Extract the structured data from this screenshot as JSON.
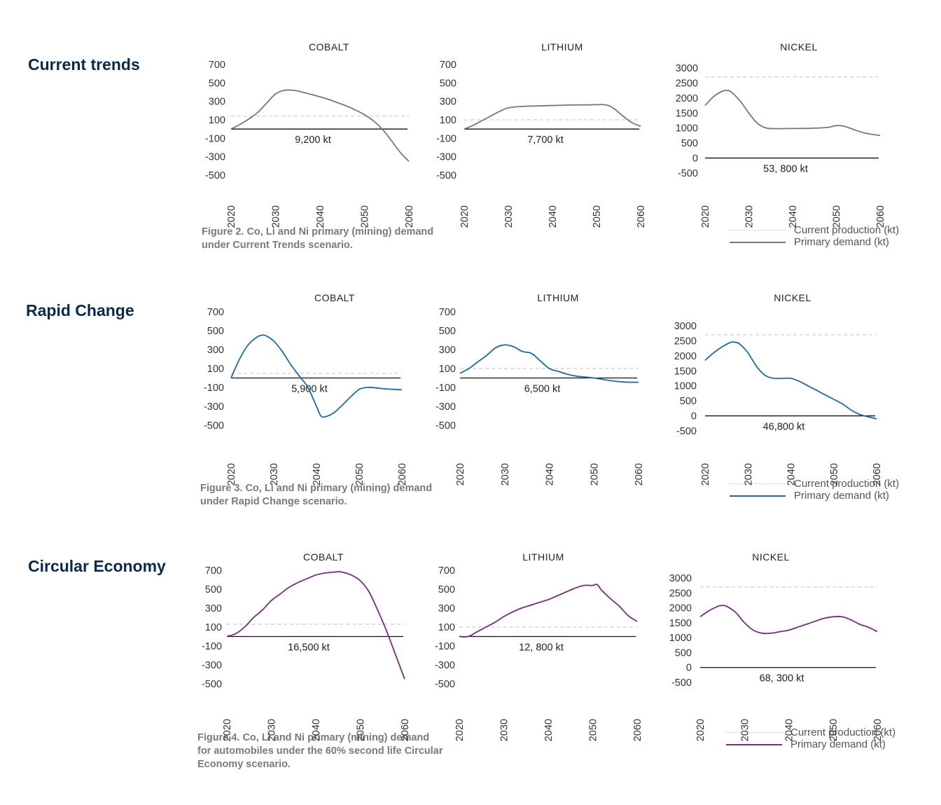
{
  "rows": [
    {
      "title": "Current trends",
      "caption": [
        "Figure 2. Co, Li and Ni primary (mining) demand",
        "under Current Trends scenario."
      ],
      "line_color": "#777777",
      "legend": {
        "current": "Current production (kt)",
        "primary": "Primary demand (kt)"
      }
    },
    {
      "title": "Rapid Change",
      "caption": [
        "Figure 3. Co, Li and Ni primary (mining) demand",
        "under Rapid Change scenario."
      ],
      "line_color": "#1a6aa8",
      "legend": {
        "current": "Current production (kt)",
        "primary": "Primary demand (kt)"
      }
    },
    {
      "title": "Circular Economy",
      "caption": [
        "Figure 4. Co, Li and Ni primary (mining) demand",
        "for automobiles under the 60% second life Circular",
        "Economy scenario."
      ],
      "line_color": "#7b2a80",
      "legend": {
        "current": "Current production (kt)",
        "primary": "Primary demand (kt)"
      }
    }
  ],
  "chart_data": [
    {
      "type": "line",
      "row": 0,
      "title": "COBALT",
      "yticks": [
        "700",
        "500",
        "300",
        "100",
        "-100",
        "-300",
        "-500"
      ],
      "ytick_values": [
        700,
        500,
        300,
        100,
        -100,
        -300,
        -500
      ],
      "ylim": [
        -500,
        700
      ],
      "xticks": [
        "2020",
        "2030",
        "2040",
        "2050",
        "2060"
      ],
      "xlim": [
        2020,
        2060
      ],
      "current_production": 140,
      "total_label": "9,200 kt",
      "series": [
        {
          "name": "Primary demand (kt)",
          "x": [
            2020,
            2022,
            2024,
            2026,
            2028,
            2030,
            2032,
            2034,
            2036,
            2038,
            2040,
            2042,
            2044,
            2046,
            2048,
            2050,
            2052,
            2054,
            2056,
            2058,
            2060
          ],
          "y": [
            0,
            50,
            110,
            180,
            280,
            380,
            420,
            420,
            400,
            375,
            350,
            320,
            285,
            250,
            205,
            155,
            90,
            0,
            -120,
            -250,
            -350
          ]
        }
      ]
    },
    {
      "type": "line",
      "row": 0,
      "title": "LITHIUM",
      "yticks": [
        "700",
        "500",
        "300",
        "100",
        "-100",
        "-300",
        "-500"
      ],
      "ytick_values": [
        700,
        500,
        300,
        100,
        -100,
        -300,
        -500
      ],
      "ylim": [
        -500,
        700
      ],
      "xticks": [
        "2020",
        "2030",
        "2040",
        "2050",
        "2060"
      ],
      "xlim": [
        2020,
        2060
      ],
      "current_production": 100,
      "total_label": "7,700 kt",
      "series": [
        {
          "name": "Primary demand (kt)",
          "x": [
            2020,
            2022,
            2024,
            2026,
            2028,
            2030,
            2033,
            2036,
            2040,
            2044,
            2048,
            2052,
            2054,
            2056,
            2058,
            2060
          ],
          "y": [
            0,
            40,
            90,
            140,
            190,
            230,
            245,
            250,
            255,
            260,
            262,
            262,
            220,
            140,
            70,
            30
          ]
        }
      ]
    },
    {
      "type": "line",
      "row": 0,
      "title": "NICKEL",
      "yticks": [
        "3000",
        "2500",
        "2000",
        "1500",
        "1000",
        "500",
        "0",
        "-500"
      ],
      "ytick_values": [
        3000,
        2500,
        2000,
        1500,
        1000,
        500,
        0,
        -500
      ],
      "ylim": [
        -500,
        3000
      ],
      "xticks": [
        "2020",
        "2030",
        "2040",
        "2050",
        "2060"
      ],
      "xlim": [
        2020,
        2060
      ],
      "current_production": 2700,
      "total_label": "53, 800 kt",
      "series": [
        {
          "name": "Primary demand (kt)",
          "x": [
            2020,
            2022,
            2024,
            2025,
            2026,
            2028,
            2030,
            2032,
            2034,
            2036,
            2040,
            2044,
            2048,
            2050,
            2052,
            2056,
            2060
          ],
          "y": [
            1750,
            2050,
            2230,
            2250,
            2200,
            1900,
            1500,
            1150,
            1000,
            980,
            985,
            990,
            1020,
            1080,
            1050,
            850,
            750
          ]
        }
      ]
    },
    {
      "type": "line",
      "row": 1,
      "title": "COBALT",
      "yticks": [
        "700",
        "500",
        "300",
        "100",
        "-100",
        "-300",
        "-500"
      ],
      "ytick_values": [
        700,
        500,
        300,
        100,
        -100,
        -300,
        -500
      ],
      "ylim": [
        -500,
        700
      ],
      "xticks": [
        "2020",
        "2030",
        "2040",
        "2050",
        "2060"
      ],
      "xlim": [
        2020,
        2060
      ],
      "current_production": 50,
      "total_label": "5,900 kt",
      "series": [
        {
          "name": "Primary demand (kt)",
          "x": [
            2020,
            2022,
            2024,
            2026,
            2027,
            2028,
            2030,
            2032,
            2034,
            2036,
            2038,
            2040,
            2041,
            2042,
            2044,
            2046,
            2048,
            2050,
            2052,
            2054,
            2056,
            2058,
            2060
          ],
          "y": [
            0,
            200,
            350,
            430,
            450,
            450,
            390,
            280,
            140,
            20,
            -100,
            -300,
            -400,
            -410,
            -370,
            -290,
            -200,
            -120,
            -100,
            -105,
            -115,
            -120,
            -125
          ]
        }
      ]
    },
    {
      "type": "line",
      "row": 1,
      "title": "LITHIUM",
      "yticks": [
        "700",
        "500",
        "300",
        "100",
        "-100",
        "-300",
        "-500"
      ],
      "ytick_values": [
        700,
        500,
        300,
        100,
        -100,
        -300,
        -500
      ],
      "ylim": [
        -500,
        700
      ],
      "xticks": [
        "2020",
        "2030",
        "2040",
        "2050",
        "2060"
      ],
      "xlim": [
        2020,
        2060
      ],
      "current_production": 100,
      "total_label": "6,500 kt",
      "series": [
        {
          "name": "Primary demand (kt)",
          "x": [
            2020,
            2022,
            2024,
            2026,
            2028,
            2030,
            2032,
            2034,
            2036,
            2038,
            2040,
            2042,
            2044,
            2046,
            2048,
            2050,
            2052,
            2054,
            2056,
            2058,
            2060
          ],
          "y": [
            50,
            100,
            170,
            240,
            320,
            350,
            330,
            280,
            260,
            180,
            100,
            70,
            40,
            20,
            10,
            0,
            -15,
            -30,
            -40,
            -45,
            -45
          ]
        }
      ]
    },
    {
      "type": "line",
      "row": 1,
      "title": "NICKEL",
      "yticks": [
        "3000",
        "2500",
        "2000",
        "1500",
        "1000",
        "500",
        "0",
        "-500"
      ],
      "ytick_values": [
        3000,
        2500,
        2000,
        1500,
        1000,
        500,
        0,
        -500
      ],
      "ylim": [
        -500,
        3000
      ],
      "xticks": [
        "2020",
        "2030",
        "2040",
        "2050",
        "2060"
      ],
      "xlim": [
        2020,
        2060
      ],
      "current_production": 2700,
      "total_label": "46,800 kt",
      "series": [
        {
          "name": "Primary demand (kt)",
          "x": [
            2020,
            2022,
            2024,
            2026,
            2027,
            2028,
            2030,
            2032,
            2034,
            2036,
            2038,
            2040,
            2042,
            2044,
            2046,
            2048,
            2050,
            2052,
            2054,
            2056,
            2058,
            2060
          ],
          "y": [
            1850,
            2100,
            2300,
            2450,
            2450,
            2400,
            2100,
            1650,
            1350,
            1250,
            1250,
            1250,
            1150,
            1000,
            850,
            700,
            550,
            400,
            200,
            50,
            -30,
            -100
          ]
        }
      ]
    },
    {
      "type": "line",
      "row": 2,
      "title": "COBALT",
      "yticks": [
        "700",
        "500",
        "300",
        "100",
        "-100",
        "-300",
        "-500"
      ],
      "ytick_values": [
        700,
        500,
        300,
        100,
        -100,
        -300,
        -500
      ],
      "ylim": [
        -500,
        700
      ],
      "xticks": [
        "2020",
        "2030",
        "2040",
        "2050",
        "2060"
      ],
      "xlim": [
        2020,
        2060
      ],
      "current_production": 130,
      "total_label": "16,500 kt",
      "series": [
        {
          "name": "Primary demand (kt)",
          "x": [
            2020,
            2022,
            2024,
            2026,
            2028,
            2030,
            2032,
            2034,
            2036,
            2038,
            2040,
            2042,
            2044,
            2045,
            2046,
            2048,
            2050,
            2052,
            2054,
            2056,
            2058,
            2060
          ],
          "y": [
            0,
            30,
            100,
            200,
            280,
            380,
            450,
            520,
            570,
            610,
            650,
            670,
            680,
            685,
            680,
            650,
            590,
            470,
            270,
            50,
            -200,
            -450
          ]
        }
      ]
    },
    {
      "type": "line",
      "row": 2,
      "title": "LITHIUM",
      "yticks": [
        "700",
        "500",
        "300",
        "100",
        "-100",
        "-300",
        "-500"
      ],
      "ytick_values": [
        700,
        500,
        300,
        100,
        -100,
        -300,
        -500
      ],
      "ylim": [
        -500,
        700
      ],
      "xticks": [
        "2020",
        "2030",
        "2040",
        "2050",
        "2060"
      ],
      "xlim": [
        2020,
        2060
      ],
      "current_production": 100,
      "total_label": "12, 800 kt",
      "series": [
        {
          "name": "Primary demand (kt)",
          "x": [
            2020,
            2022,
            2024,
            2026,
            2028,
            2030,
            2032,
            2034,
            2036,
            2038,
            2040,
            2042,
            2044,
            2046,
            2048,
            2050,
            2051,
            2052,
            2054,
            2056,
            2058,
            2060
          ],
          "y": [
            0,
            0,
            50,
            100,
            150,
            210,
            260,
            300,
            330,
            360,
            390,
            430,
            470,
            510,
            540,
            540,
            550,
            490,
            400,
            320,
            220,
            160
          ]
        }
      ]
    },
    {
      "type": "line",
      "row": 2,
      "title": "NICKEL",
      "yticks": [
        "3000",
        "2500",
        "2000",
        "1500",
        "1000",
        "500",
        "0",
        "-500"
      ],
      "ytick_values": [
        3000,
        2500,
        2000,
        1500,
        1000,
        500,
        0,
        -500
      ],
      "ylim": [
        -500,
        3000
      ],
      "xticks": [
        "2020",
        "2030",
        "2040",
        "2050",
        "2060"
      ],
      "xlim": [
        2020,
        2060
      ],
      "current_production": 2700,
      "total_label": "68, 300 kt",
      "series": [
        {
          "name": "Primary demand (kt)",
          "x": [
            2020,
            2022,
            2024,
            2025,
            2026,
            2028,
            2030,
            2032,
            2034,
            2036,
            2038,
            2040,
            2042,
            2044,
            2046,
            2048,
            2050,
            2052,
            2054,
            2056,
            2058,
            2060
          ],
          "y": [
            1700,
            1900,
            2050,
            2080,
            2050,
            1850,
            1500,
            1250,
            1150,
            1150,
            1200,
            1250,
            1350,
            1450,
            1550,
            1650,
            1700,
            1700,
            1600,
            1450,
            1350,
            1200
          ]
        }
      ]
    }
  ]
}
